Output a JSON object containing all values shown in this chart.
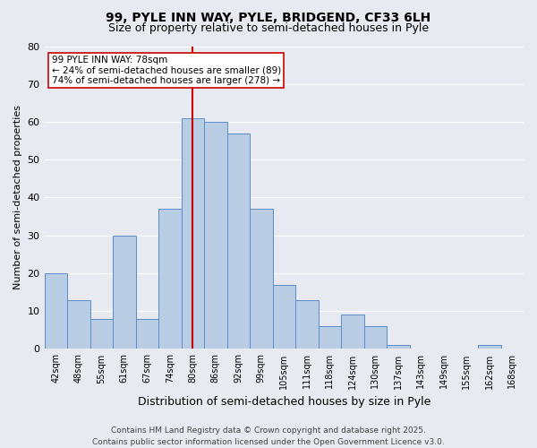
{
  "title": "99, PYLE INN WAY, PYLE, BRIDGEND, CF33 6LH",
  "subtitle": "Size of property relative to semi-detached houses in Pyle",
  "xlabel": "Distribution of semi-detached houses by size in Pyle",
  "ylabel": "Number of semi-detached properties",
  "annotation_line1": "99 PYLE INN WAY: 78sqm",
  "annotation_line2": "← 24% of semi-detached houses are smaller (89)",
  "annotation_line3": "74% of semi-detached houses are larger (278) →",
  "bar_labels": [
    "42sqm",
    "48sqm",
    "55sqm",
    "61sqm",
    "67sqm",
    "74sqm",
    "80sqm",
    "86sqm",
    "92sqm",
    "99sqm",
    "105sqm",
    "111sqm",
    "118sqm",
    "124sqm",
    "130sqm",
    "137sqm",
    "143sqm",
    "149sqm",
    "155sqm",
    "162sqm",
    "168sqm"
  ],
  "bar_values": [
    20,
    13,
    8,
    30,
    8,
    37,
    61,
    60,
    57,
    37,
    17,
    13,
    6,
    9,
    6,
    1,
    0,
    0,
    0,
    1,
    0
  ],
  "vline_bin": 6,
  "bar_color": "#b8cce4",
  "bar_edgecolor": "#5b8cc8",
  "vline_color": "#cc0000",
  "box_color": "#cc0000",
  "box_facecolor": "#ffffff",
  "ylim": [
    0,
    80
  ],
  "yticks": [
    0,
    10,
    20,
    30,
    40,
    50,
    60,
    70,
    80
  ],
  "background_color": "#e8eaf2",
  "grid_color": "#ffffff",
  "title_fontsize": 10,
  "subtitle_fontsize": 9,
  "xlabel_fontsize": 9,
  "ylabel_fontsize": 8,
  "tick_fontsize": 7,
  "annot_fontsize": 7.5,
  "footer_fontsize": 6.5,
  "footer": "Contains HM Land Registry data © Crown copyright and database right 2025.\nContains public sector information licensed under the Open Government Licence v3.0."
}
